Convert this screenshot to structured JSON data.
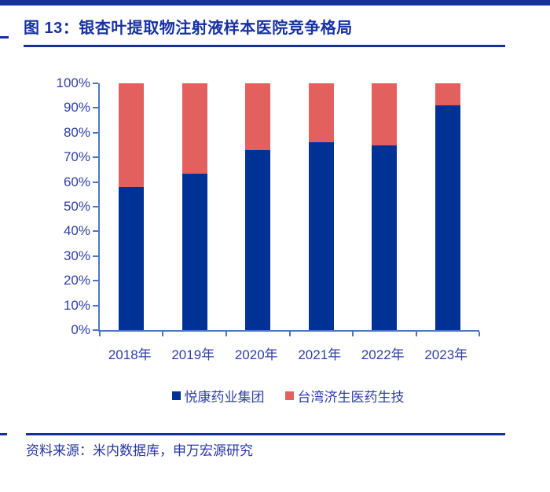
{
  "page": {
    "title_label": "图 13：银杏叶提取物注射液样本医院竞争格局",
    "source_label": "资料来源：米内数据库，申万宏源研究"
  },
  "chart_data": {
    "type": "bar",
    "subtype": "stacked-100-percent",
    "title": "银杏叶提取物注射液样本医院竞争格局",
    "categories": [
      "2018年",
      "2019年",
      "2020年",
      "2021年",
      "2022年",
      "2023年"
    ],
    "series": [
      {
        "name": "悦康药业集团",
        "color": "#003296",
        "values": [
          58,
          63.5,
          73,
          76,
          75,
          91
        ]
      },
      {
        "name": "台湾济生医药生技",
        "color": "#E2605D",
        "values": [
          42,
          36.5,
          27,
          24,
          25,
          9
        ]
      }
    ],
    "unit": "%",
    "ylim": [
      0,
      100
    ],
    "ytick_labels": [
      "100%",
      "90%",
      "80%",
      "70%",
      "60%",
      "50%",
      "40%",
      "30%",
      "20%",
      "10%",
      "0%"
    ],
    "grid": false,
    "legend_position": "bottom",
    "axis_color": "#4C77C8",
    "tick_label_color": "#2F3FA6"
  },
  "colors": {
    "rule_navy": "#16319C",
    "title_text": "#1731A3",
    "source_text": "#2735A3",
    "background": "#FFFFFF"
  }
}
